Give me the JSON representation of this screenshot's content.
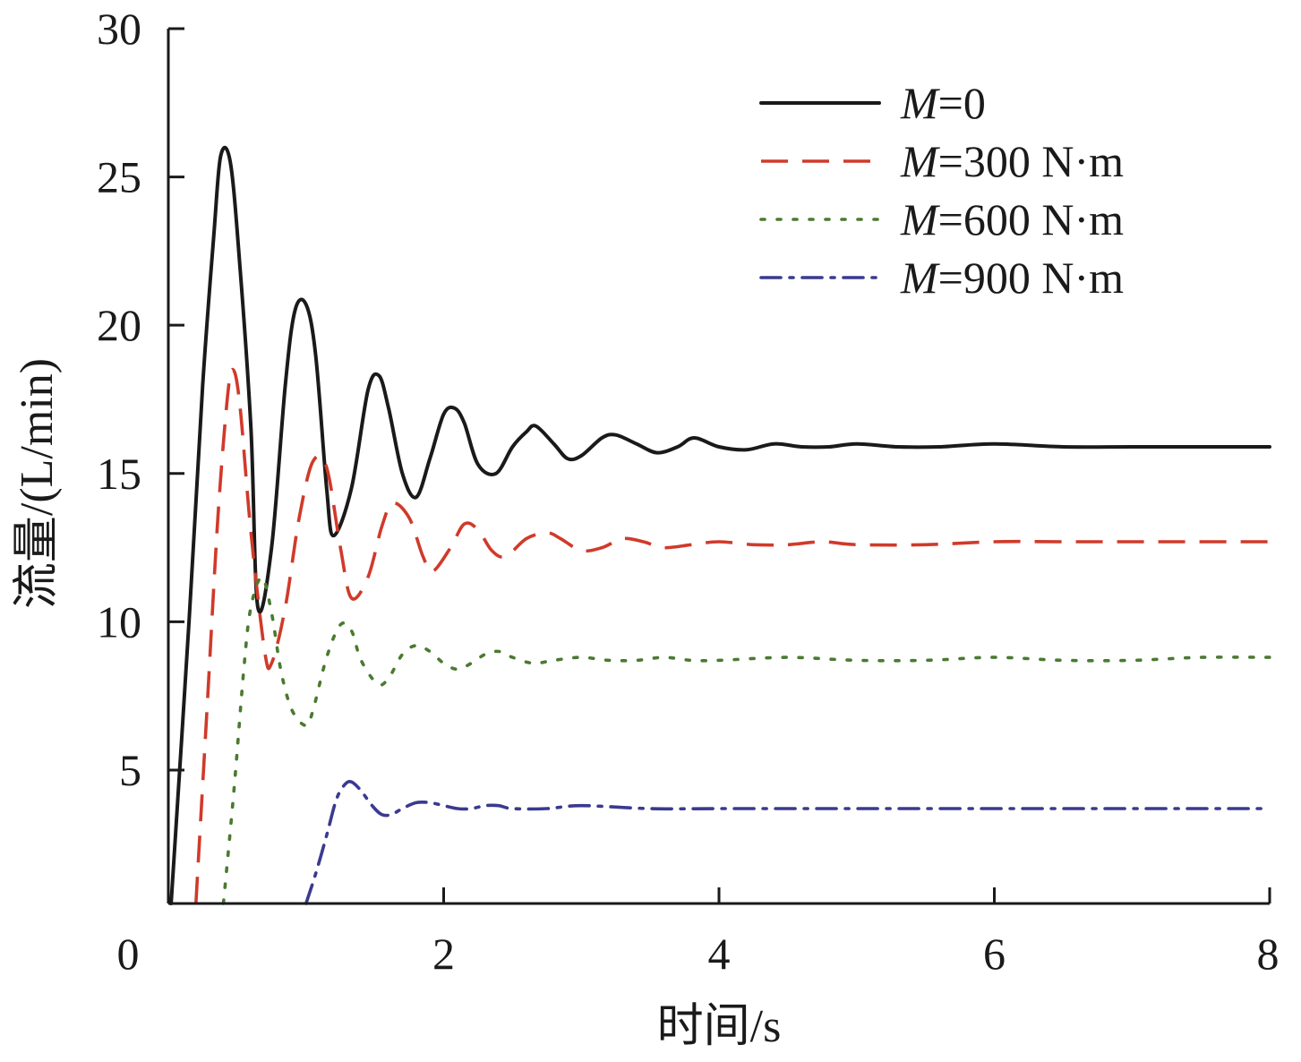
{
  "chart_data": {
    "type": "line",
    "xlabel": "时间/s",
    "ylabel": "流量/(L/min)",
    "xlim": [
      0,
      8
    ],
    "ylim": [
      0.5,
      30
    ],
    "xticks": [
      0,
      2,
      4,
      6,
      8
    ],
    "yticks": [
      5,
      10,
      15,
      20,
      25,
      30
    ],
    "origin_label": "0",
    "grid": false,
    "legend_position": "top-right",
    "series": [
      {
        "name": "M=0",
        "name_italic": "M",
        "name_rest": "=0",
        "color": "#1a1a1a",
        "style": "solid",
        "x": [
          0.02,
          0.15,
          0.25,
          0.33,
          0.38,
          0.45,
          0.52,
          0.6,
          0.65,
          0.75,
          0.85,
          0.92,
          1.0,
          1.07,
          1.15,
          1.2,
          1.33,
          1.45,
          1.53,
          1.6,
          1.7,
          1.8,
          1.9,
          2.0,
          2.08,
          2.15,
          2.25,
          2.38,
          2.5,
          2.6,
          2.67,
          2.8,
          2.9,
          3.0,
          3.15,
          3.25,
          3.4,
          3.55,
          3.7,
          3.82,
          4.0,
          4.2,
          4.4,
          4.6,
          4.8,
          5.0,
          5.3,
          5.6,
          6.0,
          6.5,
          7.0,
          7.5,
          8.0
        ],
        "y": [
          0.5,
          10.0,
          18.0,
          23.0,
          25.7,
          25.5,
          22.0,
          16.5,
          10.5,
          12.5,
          18.0,
          20.5,
          20.7,
          19.0,
          14.5,
          12.9,
          14.5,
          17.8,
          18.3,
          17.2,
          15.0,
          14.2,
          15.5,
          17.0,
          17.2,
          16.7,
          15.3,
          15.0,
          15.9,
          16.4,
          16.6,
          16.0,
          15.5,
          15.6,
          16.2,
          16.3,
          16.0,
          15.7,
          15.9,
          16.2,
          15.9,
          15.8,
          16.0,
          15.9,
          15.9,
          16.0,
          15.9,
          15.9,
          16.0,
          15.9,
          15.9,
          15.9,
          15.9
        ]
      },
      {
        "name": "M=300 N·m",
        "name_italic": "M",
        "name_rest": "=300 N·m",
        "color": "#d03a2a",
        "style": "dashed",
        "x": [
          0.2,
          0.28,
          0.36,
          0.43,
          0.47,
          0.52,
          0.6,
          0.7,
          0.75,
          0.85,
          0.95,
          1.05,
          1.15,
          1.25,
          1.33,
          1.45,
          1.55,
          1.63,
          1.75,
          1.85,
          1.92,
          2.05,
          2.15,
          2.25,
          2.35,
          2.45,
          2.6,
          2.75,
          2.85,
          3.0,
          3.15,
          3.3,
          3.45,
          3.6,
          3.8,
          4.0,
          4.25,
          4.5,
          4.75,
          5.0,
          5.5,
          6.0,
          6.5,
          7.0,
          7.5,
          8.0
        ],
        "y": [
          0.5,
          7.0,
          13.5,
          17.6,
          18.5,
          17.3,
          13.0,
          9.0,
          8.6,
          10.5,
          13.5,
          15.4,
          15.2,
          12.5,
          10.8,
          11.5,
          13.2,
          14.0,
          13.5,
          12.2,
          11.7,
          12.5,
          13.3,
          13.1,
          12.4,
          12.2,
          12.8,
          13.0,
          12.8,
          12.4,
          12.5,
          12.8,
          12.7,
          12.5,
          12.6,
          12.7,
          12.6,
          12.6,
          12.7,
          12.6,
          12.6,
          12.7,
          12.7,
          12.7,
          12.7,
          12.7
        ]
      },
      {
        "name": "M=600 N·m",
        "name_italic": "M",
        "name_rest": "=600 N·m",
        "color": "#4a7a30",
        "style": "dotted",
        "x": [
          0.4,
          0.48,
          0.55,
          0.6,
          0.68,
          0.75,
          0.82,
          0.9,
          1.0,
          1.05,
          1.15,
          1.25,
          1.33,
          1.4,
          1.52,
          1.6,
          1.7,
          1.8,
          1.9,
          2.0,
          2.1,
          2.2,
          2.3,
          2.4,
          2.5,
          2.65,
          2.8,
          3.0,
          3.2,
          3.4,
          3.6,
          3.8,
          4.0,
          4.5,
          5.0,
          5.5,
          6.0,
          6.5,
          7.0,
          7.5,
          8.0
        ],
        "y": [
          0.5,
          4.5,
          8.5,
          10.5,
          11.5,
          10.3,
          8.3,
          7.0,
          6.5,
          7.0,
          8.8,
          9.9,
          9.7,
          8.7,
          7.9,
          8.1,
          8.9,
          9.2,
          9.0,
          8.6,
          8.4,
          8.6,
          8.9,
          9.0,
          8.8,
          8.6,
          8.7,
          8.8,
          8.7,
          8.7,
          8.8,
          8.7,
          8.7,
          8.8,
          8.7,
          8.7,
          8.8,
          8.7,
          8.7,
          8.8,
          8.8
        ]
      },
      {
        "name": "M=900 N·m",
        "name_italic": "M",
        "name_rest": "=900 N·m",
        "color": "#3a3a90",
        "style": "dashdot",
        "x": [
          1.0,
          1.07,
          1.15,
          1.22,
          1.28,
          1.33,
          1.4,
          1.48,
          1.55,
          1.62,
          1.7,
          1.8,
          1.9,
          2.0,
          2.1,
          2.2,
          2.3,
          2.4,
          2.5,
          2.75,
          3.0,
          3.5,
          4.0,
          4.5,
          5.0,
          5.5,
          6.0,
          6.5,
          7.0,
          7.5,
          8.0
        ],
        "y": [
          0.5,
          1.5,
          2.8,
          4.0,
          4.5,
          4.6,
          4.3,
          3.8,
          3.5,
          3.5,
          3.7,
          3.9,
          3.9,
          3.8,
          3.7,
          3.7,
          3.8,
          3.8,
          3.7,
          3.7,
          3.8,
          3.7,
          3.7,
          3.7,
          3.7,
          3.7,
          3.7,
          3.7,
          3.7,
          3.7,
          3.7
        ]
      }
    ]
  }
}
